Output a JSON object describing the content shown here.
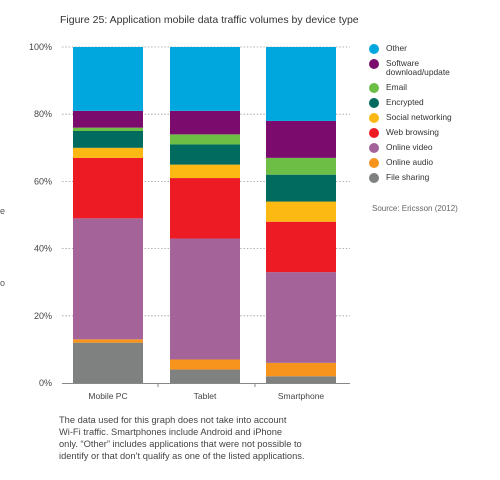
{
  "figure": {
    "title": "Figure 25: Application mobile data traffic volumes by device type",
    "source": "Source: Ericsson (2012)",
    "caption_lines": [
      "The data used for this graph does not take into account",
      "Wi-Fi traffic. Smartphones include Android and iPhone",
      "only. “Other” includes applications that were not possible to",
      "identify or that don’t qualify as one of the listed applications."
    ],
    "left_fragments": [
      "e",
      "o"
    ]
  },
  "chart_data": {
    "type": "bar",
    "stacked": true,
    "percent": true,
    "title": "Figure 25: Application mobile data traffic volumes by device type",
    "xlabel": "",
    "ylabel": "",
    "ylim": [
      0,
      100
    ],
    "yticks": [
      "0%",
      "20%",
      "40%",
      "60%",
      "80%",
      "100%"
    ],
    "grid": true,
    "legend_position": "right",
    "categories": [
      "Mobile PC",
      "Tablet",
      "Smartphone"
    ],
    "series": [
      {
        "name": "File sharing",
        "color": "#7f8181",
        "values": [
          12,
          4,
          2
        ]
      },
      {
        "name": "Online audio",
        "color": "#f7941d",
        "values": [
          1,
          3,
          4
        ]
      },
      {
        "name": "Online video",
        "color": "#a4649a",
        "values": [
          36,
          36,
          27
        ]
      },
      {
        "name": "Web browsing",
        "color": "#ed1c24",
        "values": [
          18,
          18,
          15
        ]
      },
      {
        "name": "Social networking",
        "color": "#fdb913",
        "values": [
          3,
          4,
          6
        ]
      },
      {
        "name": "Encrypted",
        "color": "#006b5e",
        "values": [
          5,
          6,
          8
        ]
      },
      {
        "name": "Email",
        "color": "#6cbe45",
        "values": [
          1,
          3,
          5
        ]
      },
      {
        "name": "Software download/update",
        "color": "#7b0c6e",
        "values": [
          5,
          7,
          11
        ]
      },
      {
        "name": "Other",
        "color": "#00a6de",
        "values": [
          19,
          19,
          22
        ]
      }
    ],
    "legend_order": [
      {
        "label": "Other",
        "color": "#00a6de"
      },
      {
        "label": "Software\ndownload/update",
        "color": "#7b0c6e"
      },
      {
        "label": "Email",
        "color": "#6cbe45"
      },
      {
        "label": "Encrypted",
        "color": "#006b5e"
      },
      {
        "label": "Social networking",
        "color": "#fdb913"
      },
      {
        "label": "Web browsing",
        "color": "#ed1c24"
      },
      {
        "label": "Online video",
        "color": "#a4649a"
      },
      {
        "label": "Online audio",
        "color": "#f7941d"
      },
      {
        "label": "File sharing",
        "color": "#7f8181"
      }
    ]
  }
}
